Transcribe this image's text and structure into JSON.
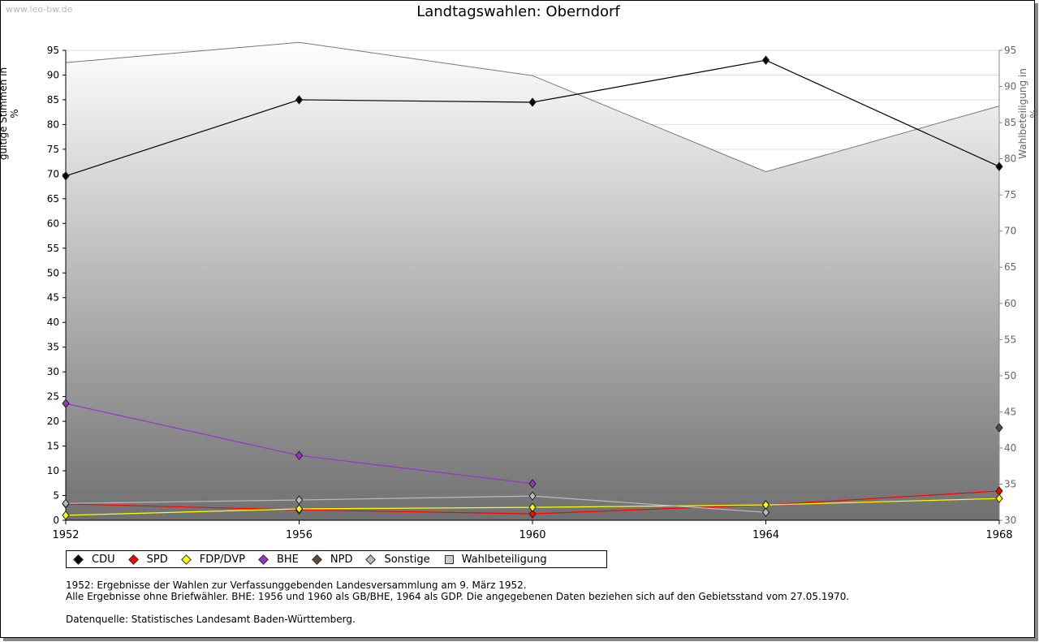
{
  "watermark": "www.leo-bw.de",
  "title": "Landtagswahlen: Oberndorf",
  "chart_data": {
    "type": "line",
    "title": "Landtagswahlen: Oberndorf",
    "ylabel": "gültige Stimmen in %",
    "y2label": "Wahlbeteiligung in %",
    "x": [
      "1952",
      "1956",
      "1960",
      "1964",
      "1968"
    ],
    "ylim": [
      0,
      95
    ],
    "y2lim": [
      30,
      95
    ],
    "yticks": [
      0,
      5,
      10,
      15,
      20,
      25,
      30,
      35,
      40,
      45,
      50,
      55,
      60,
      65,
      70,
      75,
      80,
      85,
      90,
      95
    ],
    "y2ticks": [
      30,
      35,
      40,
      45,
      50,
      55,
      60,
      65,
      70,
      75,
      80,
      85,
      90,
      95
    ],
    "series": [
      {
        "name": "CDU",
        "color": "#000000",
        "values": [
          69.6,
          85.0,
          84.5,
          93.0,
          71.5
        ]
      },
      {
        "name": "SPD",
        "color": "#ff0000",
        "values": [
          3.3,
          2.1,
          1.3,
          3.1,
          5.9
        ]
      },
      {
        "name": "FDP/DVP",
        "color": "#ffff00",
        "values": [
          1.0,
          2.3,
          2.6,
          3.1,
          4.4
        ]
      },
      {
        "name": "BHE",
        "color": "#9933cc",
        "values": [
          23.6,
          13.1,
          7.4,
          null,
          null
        ]
      },
      {
        "name": "NPD",
        "color": "#5a4a3a",
        "values": [
          null,
          null,
          null,
          null,
          18.7
        ]
      },
      {
        "name": "Sonstige",
        "color": "#bbbbbb",
        "values": [
          3.4,
          4.1,
          4.9,
          1.6,
          null
        ]
      }
    ],
    "area": {
      "name": "Wahlbeteiligung",
      "axis": "right",
      "values": [
        93.3,
        96.1,
        91.5,
        78.2,
        87.3
      ]
    },
    "legend": "bottom-left"
  },
  "notes": [
    "1952: Ergebnisse der Wahlen zur Verfassunggebenden Landesversammlung am 9. März 1952.",
    "Alle Ergebnisse ohne Briefwähler. BHE: 1956 und 1960 als GB/BHE, 1964 als GDP. Die angegebenen Daten beziehen sich auf den Gebietsstand vom 27.05.1970.",
    "Datenquelle: Statistisches Landesamt Baden-Württemberg."
  ]
}
